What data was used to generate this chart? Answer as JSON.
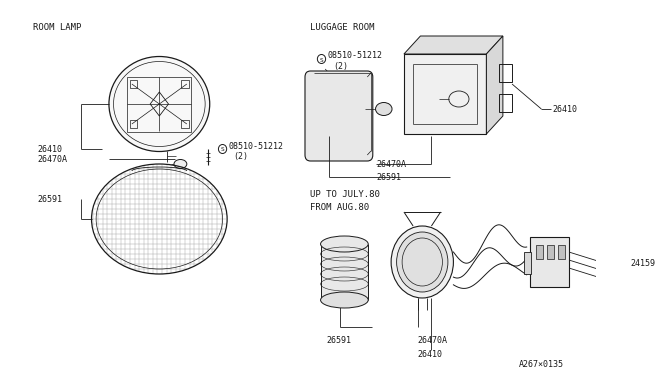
{
  "bg": "#ffffff",
  "lc": "#1a1a1a",
  "gray": "#888888",
  "light_gray": "#cccccc",
  "section_room_lamp": "ROOM LAMP",
  "section_luggage": "LUGGAGE ROOM",
  "section_up_to": "UP TO JULY.80",
  "section_from": "FROM AUG.80",
  "screw_label": "08510-51212",
  "screw_qty": "(2)",
  "p26410": "26410",
  "p26470A": "26470A",
  "p26591": "26591",
  "p24159": "24159",
  "watermark": "A267×0135",
  "fs": 6.0,
  "fs_sec": 6.5,
  "fs_s": 5.0
}
